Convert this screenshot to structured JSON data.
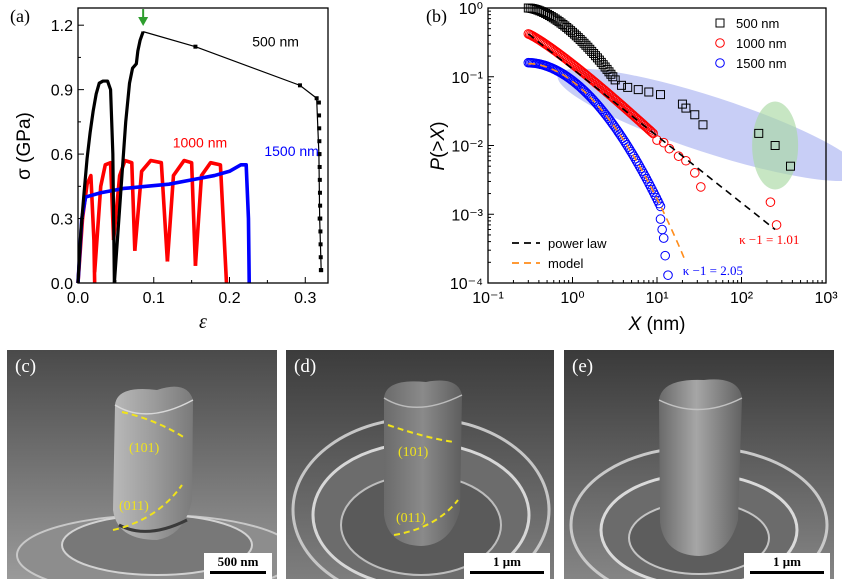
{
  "panels": {
    "a": "(a)",
    "b": "(b)",
    "c": "(c)",
    "d": "(d)",
    "e": "(e)"
  },
  "colors": {
    "s500": "#000000",
    "s1000": "#ff0000",
    "s1500": "#0000ff",
    "arrow": "#2e9e2e",
    "model": "#ff8c1a",
    "ellipse_blue": "#9ba6ef",
    "ellipse_green": "#a9d8a3"
  },
  "chart_data": [
    {
      "type": "line",
      "panel": "a",
      "xlabel": "ε",
      "ylabel": "σ (GPa)",
      "xlim": [
        0.0,
        0.33
      ],
      "ylim": [
        0.0,
        1.28
      ],
      "xticks": [
        "0.0",
        "0.1",
        "0.2",
        "0.3"
      ],
      "yticks": [
        "0.0",
        "0.3",
        "0.6",
        "0.9",
        "1.2"
      ],
      "series": [
        {
          "name": "500 nm",
          "color": "#000000",
          "segments": [
            [
              [
                0.0,
                0.0
              ],
              [
                0.004,
                0.25
              ],
              [
                0.008,
                0.42
              ],
              [
                0.012,
                0.58
              ],
              [
                0.016,
                0.7
              ],
              [
                0.02,
                0.8
              ],
              [
                0.024,
                0.88
              ],
              [
                0.028,
                0.93
              ],
              [
                0.033,
                0.94
              ],
              [
                0.039,
                0.94
              ],
              [
                0.043,
                0.9
              ],
              [
                0.046,
                0.6
              ],
              [
                0.047,
                0.3
              ],
              [
                0.048,
                0.0
              ]
            ],
            [
              [
                0.048,
                0.0
              ],
              [
                0.056,
                0.4
              ],
              [
                0.063,
                0.75
              ],
              [
                0.068,
                0.93
              ],
              [
                0.072,
                1.0
              ],
              [
                0.077,
                1.02
              ],
              [
                0.079,
                1.08
              ],
              [
                0.082,
                1.13
              ],
              [
                0.086,
                1.17
              ],
              [
                0.155,
                1.1
              ],
              [
                0.293,
                0.92
              ],
              [
                0.315,
                0.86
              ],
              [
                0.318,
                0.6
              ],
              [
                0.319,
                0.3
              ],
              [
                0.321,
                0.06
              ]
            ]
          ]
        },
        {
          "name": "1000 nm",
          "color": "#ff0000",
          "segments": [
            [
              [
                0.0,
                0.0
              ],
              [
                0.006,
                0.3
              ],
              [
                0.012,
                0.46
              ],
              [
                0.017,
                0.5
              ],
              [
                0.021,
                0.2
              ],
              [
                0.022,
                0.0
              ]
            ],
            [
              [
                0.022,
                0.05
              ],
              [
                0.03,
                0.45
              ],
              [
                0.036,
                0.55
              ],
              [
                0.043,
                0.56
              ],
              [
                0.047,
                0.2
              ]
            ],
            [
              [
                0.047,
                0.2
              ],
              [
                0.055,
                0.5
              ],
              [
                0.062,
                0.57
              ],
              [
                0.071,
                0.56
              ],
              [
                0.075,
                0.15
              ]
            ],
            [
              [
                0.075,
                0.15
              ],
              [
                0.084,
                0.52
              ],
              [
                0.096,
                0.57
              ],
              [
                0.11,
                0.56
              ],
              [
                0.118,
                0.1
              ]
            ],
            [
              [
                0.118,
                0.1
              ],
              [
                0.126,
                0.5
              ],
              [
                0.14,
                0.57
              ],
              [
                0.15,
                0.56
              ],
              [
                0.155,
                0.08
              ]
            ],
            [
              [
                0.155,
                0.08
              ],
              [
                0.163,
                0.5
              ],
              [
                0.175,
                0.56
              ],
              [
                0.188,
                0.55
              ],
              [
                0.196,
                0.0
              ]
            ]
          ]
        },
        {
          "name": "1500 nm",
          "color": "#0000ff",
          "segments": [
            [
              [
                0.0,
                0.0
              ],
              [
                0.005,
                0.3
              ],
              [
                0.01,
                0.4
              ],
              [
                0.03,
                0.42
              ],
              [
                0.06,
                0.44
              ],
              [
                0.09,
                0.45
              ],
              [
                0.12,
                0.46
              ],
              [
                0.15,
                0.48
              ],
              [
                0.18,
                0.5
              ],
              [
                0.2,
                0.52
              ],
              [
                0.215,
                0.55
              ],
              [
                0.222,
                0.55
              ],
              [
                0.225,
                0.3
              ],
              [
                0.226,
                0.0
              ]
            ]
          ]
        }
      ],
      "labels": [
        {
          "text": "500 nm",
          "x": 0.23,
          "y": 1.1,
          "color": "#000000"
        },
        {
          "text": "1000 nm",
          "x": 0.125,
          "y": 0.63,
          "color": "#ff0000"
        },
        {
          "text": "1500 nm",
          "x": 0.246,
          "y": 0.59,
          "color": "#0000ff"
        }
      ],
      "arrow_at": [
        0.086,
        1.21
      ]
    },
    {
      "type": "scatter",
      "panel": "b",
      "xscale": "log",
      "yscale": "log",
      "xlabel": "X (nm)",
      "ylabel": "P(>X)",
      "xlim": [
        0.1,
        1000
      ],
      "ylim": [
        0.0001,
        1
      ],
      "xticks": [
        "10⁻¹",
        "10⁰",
        "10¹",
        "10²",
        "10³"
      ],
      "yticks": [
        "10⁻⁴",
        "10⁻³",
        "10⁻²",
        "10⁻¹",
        "10⁰"
      ],
      "series": [
        {
          "name": "500 nm",
          "color": "#000000",
          "marker": "square",
          "dense": {
            "x_start": 0.3,
            "x_end": 3.0,
            "y_start": 1.0,
            "y_end": 0.1,
            "n": 45
          },
          "points": [
            [
              3.2,
              0.09
            ],
            [
              3.8,
              0.075
            ],
            [
              4.5,
              0.07
            ],
            [
              6.0,
              0.065
            ],
            [
              8.0,
              0.06
            ],
            [
              11.0,
              0.055
            ],
            [
              20.0,
              0.04
            ],
            [
              22.0,
              0.035
            ],
            [
              28.0,
              0.028
            ],
            [
              35.0,
              0.02
            ],
            [
              160.0,
              0.015
            ],
            [
              250.0,
              0.01
            ],
            [
              380.0,
              0.005
            ]
          ]
        },
        {
          "name": "1000 nm",
          "color": "#ff0000",
          "marker": "circle",
          "dense": {
            "x_start": 0.3,
            "x_end": 9.0,
            "y_start": 0.42,
            "y_end": 0.015,
            "n": 90
          },
          "points": [
            [
              10.0,
              0.012
            ],
            [
              12.0,
              0.011
            ],
            [
              14.0,
              0.009
            ],
            [
              18.0,
              0.007
            ],
            [
              22.0,
              0.006
            ],
            [
              28.0,
              0.004
            ],
            [
              33.0,
              0.0025
            ],
            [
              220.0,
              0.0015
            ],
            [
              260.0,
              0.0007
            ]
          ]
        },
        {
          "name": "1500 nm",
          "color": "#0000ff",
          "marker": "circle",
          "dense": {
            "x_start": 0.3,
            "x_end": 11.0,
            "y_start": 0.16,
            "y_end": 0.0013,
            "n": 95
          },
          "points": [
            [
              11.0,
              0.00085
            ],
            [
              11.5,
              0.0006
            ],
            [
              12.0,
              0.00045
            ],
            [
              12.5,
              0.00025
            ],
            [
              13.5,
              0.00013
            ]
          ]
        }
      ],
      "fits": [
        {
          "name": "power law",
          "color": "#000000",
          "style": "dash",
          "from": [
            0.3,
            0.42
          ],
          "to": [
            250.0,
            0.0006
          ]
        },
        {
          "name": "model",
          "color": "#ff8c1a",
          "style": "dash",
          "from": [
            0.3,
            0.155
          ],
          "to": [
            22.0,
            0.0002
          ],
          "curved": true
        }
      ],
      "annotations": [
        {
          "text": "κ −1 = 1.01",
          "x": 250.0,
          "y": 0.00045,
          "color": "#ff0000"
        },
        {
          "text": "κ −1 = 2.05",
          "x": 28.0,
          "y": 0.00016,
          "color": "#0000ff"
        }
      ],
      "legend_top": [
        "500 nm",
        "1000 nm",
        "1500 nm"
      ],
      "legend_bottom": [
        "power law",
        "model"
      ]
    }
  ],
  "sem": {
    "c": {
      "scale": "500 nm",
      "labels": [
        "(101)",
        "(011)"
      ]
    },
    "d": {
      "scale": "1 μm",
      "labels": [
        "(101)",
        "(011)"
      ]
    },
    "e": {
      "scale": "1 μm"
    }
  }
}
